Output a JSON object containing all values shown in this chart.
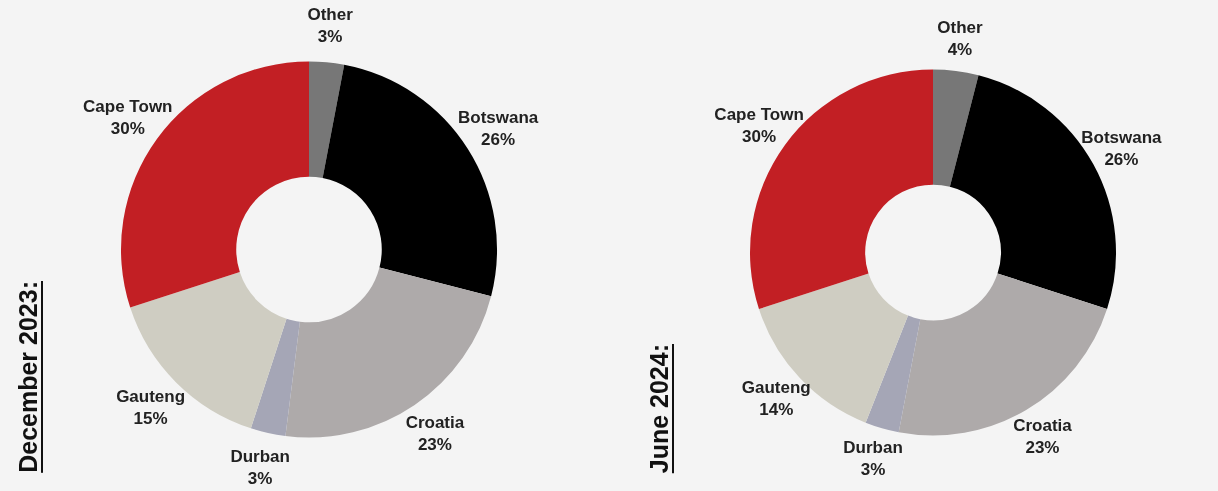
{
  "chart_data": [
    {
      "type": "donut",
      "title": "December 2023:",
      "categories": [
        "Other",
        "Botswana",
        "Croatia",
        "Durban",
        "Gauteng",
        "Cape Town"
      ],
      "values": [
        3,
        26,
        23,
        3,
        15,
        30
      ],
      "value_labels": [
        "3%",
        "26%",
        "23%",
        "3%",
        "15%",
        "30%"
      ],
      "colors": [
        "#777777",
        "#000000",
        "#aeaaaa",
        "#a5a6b6",
        "#cfcdc2",
        "#c21f24"
      ]
    },
    {
      "type": "donut",
      "title": "June 2024:",
      "categories": [
        "Other",
        "Botswana",
        "Croatia",
        "Durban",
        "Gauteng",
        "Cape Town"
      ],
      "values": [
        4,
        26,
        23,
        3,
        14,
        30
      ],
      "value_labels": [
        "4%",
        "26%",
        "23%",
        "3%",
        "14%",
        "30%"
      ],
      "colors": [
        "#777777",
        "#000000",
        "#aeaaaa",
        "#a5a6b6",
        "#cfcdc2",
        "#c21f24"
      ]
    }
  ]
}
